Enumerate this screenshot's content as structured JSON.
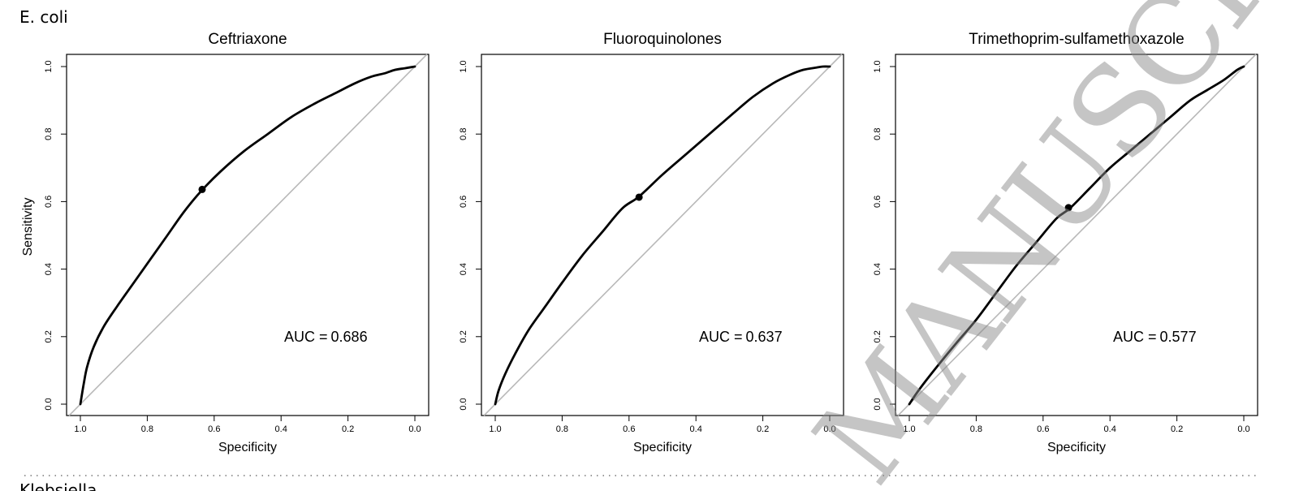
{
  "figure": {
    "section_title": "E. coli",
    "next_section_title": "Klebsiella",
    "watermark": "MANUSCRIPT"
  },
  "chart_data": [
    {
      "type": "line",
      "title": "Ceftriaxone",
      "xlabel": "Specificity",
      "ylabel": "Sensitivity",
      "x_reversed": true,
      "xlim": [
        1.0,
        0.0
      ],
      "ylim": [
        0.0,
        1.0
      ],
      "xticks": [
        "1.0",
        "0.8",
        "0.6",
        "0.4",
        "0.2",
        "0.0"
      ],
      "yticks": [
        "0.0",
        "0.2",
        "0.4",
        "0.6",
        "0.8",
        "1.0"
      ],
      "grid": false,
      "auc_label": "AUC =",
      "auc_value": "0.686",
      "color_curve": "#000000",
      "color_diagonal": "#b8b8b8",
      "series": [
        {
          "x": [
            1.0,
            0.99,
            0.98,
            0.96,
            0.93,
            0.89,
            0.84,
            0.79,
            0.74,
            0.69,
            0.64,
            0.58,
            0.51,
            0.44,
            0.37,
            0.3,
            0.24,
            0.18,
            0.13,
            0.09,
            0.06,
            0.03,
            0.0
          ],
          "y": [
            0.0,
            0.06,
            0.11,
            0.17,
            0.23,
            0.29,
            0.36,
            0.43,
            0.5,
            0.57,
            0.63,
            0.69,
            0.75,
            0.8,
            0.85,
            0.89,
            0.92,
            0.95,
            0.97,
            0.98,
            0.99,
            0.995,
            1.0
          ]
        }
      ],
      "threshold_point": {
        "x": 0.636,
        "y": 0.636
      }
    },
    {
      "type": "line",
      "title": "Fluoroquinolones",
      "xlabel": "Specificity",
      "ylabel": "",
      "x_reversed": true,
      "xlim": [
        1.0,
        0.0
      ],
      "ylim": [
        0.0,
        1.0
      ],
      "xticks": [
        "1.0",
        "0.8",
        "0.6",
        "0.4",
        "0.2",
        "0.0"
      ],
      "yticks": [
        "0.0",
        "0.2",
        "0.4",
        "0.6",
        "0.8",
        "1.0"
      ],
      "grid": false,
      "auc_label": "AUC =",
      "auc_value": "0.637",
      "color_curve": "#000000",
      "color_diagonal": "#b8b8b8",
      "series": [
        {
          "x": [
            1.0,
            0.99,
            0.97,
            0.94,
            0.9,
            0.85,
            0.8,
            0.74,
            0.68,
            0.62,
            0.57,
            0.5,
            0.43,
            0.36,
            0.29,
            0.23,
            0.17,
            0.12,
            0.08,
            0.04,
            0.02,
            0.0
          ],
          "y": [
            0.0,
            0.04,
            0.09,
            0.15,
            0.22,
            0.29,
            0.36,
            0.44,
            0.51,
            0.58,
            0.615,
            0.68,
            0.74,
            0.8,
            0.86,
            0.91,
            0.95,
            0.975,
            0.99,
            0.997,
            1.0,
            1.0
          ]
        }
      ],
      "threshold_point": {
        "x": 0.57,
        "y": 0.613
      }
    },
    {
      "type": "line",
      "title": "Trimethoprim-sulfamethoxazole",
      "xlabel": "Specificity",
      "ylabel": "",
      "x_reversed": true,
      "xlim": [
        1.0,
        0.0
      ],
      "ylim": [
        0.0,
        1.0
      ],
      "xticks": [
        "1.0",
        "0.8",
        "0.6",
        "0.4",
        "0.2",
        "0.0"
      ],
      "yticks": [
        "0.0",
        "0.2",
        "0.4",
        "0.6",
        "0.8",
        "1.0"
      ],
      "grid": false,
      "auc_label": "AUC =",
      "auc_value": "0.577",
      "color_curve": "#000000",
      "color_diagonal": "#b8b8b8",
      "series": [
        {
          "x": [
            1.0,
            0.98,
            0.95,
            0.91,
            0.86,
            0.8,
            0.74,
            0.68,
            0.62,
            0.56,
            0.52,
            0.46,
            0.4,
            0.34,
            0.28,
            0.22,
            0.16,
            0.11,
            0.06,
            0.02,
            0.0
          ],
          "y": [
            0.0,
            0.03,
            0.07,
            0.12,
            0.18,
            0.25,
            0.33,
            0.41,
            0.48,
            0.55,
            0.58,
            0.64,
            0.7,
            0.75,
            0.8,
            0.85,
            0.9,
            0.93,
            0.96,
            0.99,
            1.0
          ]
        }
      ],
      "threshold_point": {
        "x": 0.524,
        "y": 0.582
      }
    }
  ]
}
